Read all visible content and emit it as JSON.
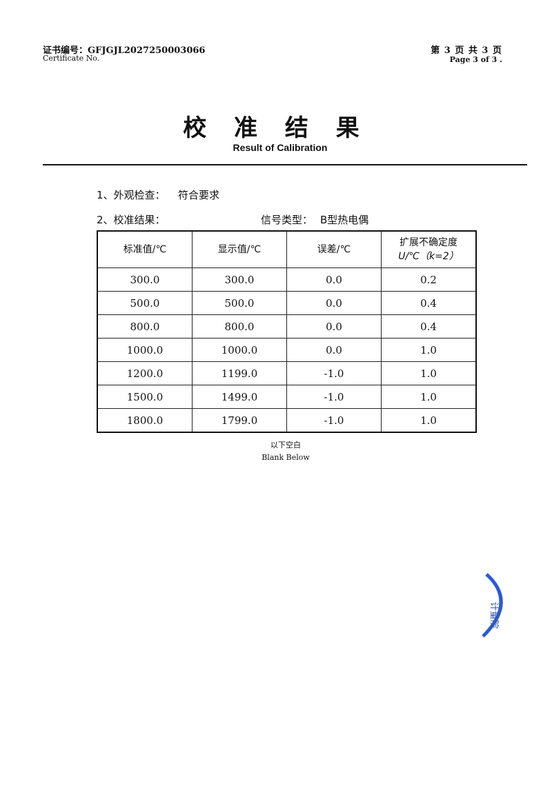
{
  "header": {
    "certificate_label": "证书编号：",
    "certificate_no": "GFJGJL2027250003066",
    "certificate_label_en": "Certificate No.",
    "page_cn": "第 3 页  共 3 页",
    "page_en": "Page  3  of  3   ."
  },
  "title": "校 准 结 果",
  "subtitle": "Result of Calibration",
  "items": {
    "appearance_label": "1、外观检查：",
    "appearance_value": "符合要求",
    "result_label": "2、校准结果：",
    "signal_label": "信号类型：",
    "signal_value": "B型热电偶"
  },
  "table": {
    "headers": [
      "标准值/℃",
      "显示值/℃",
      "误差/℃",
      "扩展不确定度",
      "U/℃（k=2）"
    ],
    "rows": [
      [
        "300.0",
        "300.0",
        "0.0",
        "0.2"
      ],
      [
        "500.0",
        "500.0",
        "0.0",
        "0.4"
      ],
      [
        "800.0",
        "800.0",
        "0.0",
        "0.4"
      ],
      [
        "1000.0",
        "1000.0",
        "0.0",
        "1.0"
      ],
      [
        "1200.0",
        "1199.0",
        "-1.0",
        "1.0"
      ],
      [
        "1500.0",
        "1499.0",
        "-1.0",
        "1.0"
      ],
      [
        "1800.0",
        "1799.0",
        "-1.0",
        "1.0"
      ]
    ]
  },
  "footer": {
    "blank_cn": "以下空白",
    "blank_en": "Blank Below"
  },
  "stamp": {
    "text": "计量",
    "color": "#2a5bd7"
  }
}
